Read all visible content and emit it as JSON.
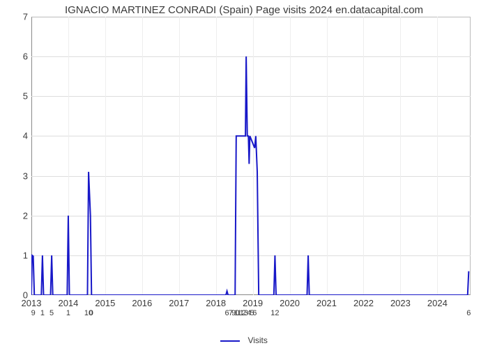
{
  "chart": {
    "type": "line",
    "title": "IGNACIO MARTINEZ CONRADI (Spain) Page visits 2024 en.datacapital.com",
    "title_fontsize": 15,
    "title_color": "#3a3a3a",
    "background_color": "#ffffff",
    "plot_border_color_main": "#888888",
    "plot_border_color_light": "#bbbbbb",
    "grid_color_h": "#dddddd",
    "grid_color_v": "#eeeeee",
    "line_color": "#1818c8",
    "line_width": 2,
    "xlim": [
      2013,
      2024.9
    ],
    "ylim": [
      0,
      7
    ],
    "ytick_step": 1,
    "yticks": [
      0,
      1,
      2,
      3,
      4,
      5,
      6,
      7
    ],
    "xticks": [
      2013,
      2014,
      2015,
      2016,
      2017,
      2018,
      2019,
      2020,
      2021,
      2022,
      2023,
      2024
    ],
    "tick_fontsize": 13,
    "legend_label": "Visits",
    "legend_fontsize": 12,
    "secondary_ticks": [
      {
        "x": 2013.05,
        "label": "9"
      },
      {
        "x": 2013.3,
        "label": "1"
      },
      {
        "x": 2013.55,
        "label": "5"
      },
      {
        "x": 2014.0,
        "label": "1"
      },
      {
        "x": 2014.55,
        "label": "10"
      },
      {
        "x": 2014.62,
        "label": "0"
      },
      {
        "x": 2018.3,
        "label": "6"
      },
      {
        "x": 2018.4,
        "label": "7"
      },
      {
        "x": 2018.48,
        "label": "9"
      },
      {
        "x": 2018.55,
        "label": "1"
      },
      {
        "x": 2018.58,
        "label": "0"
      },
      {
        "x": 2018.64,
        "label": "1"
      },
      {
        "x": 2018.7,
        "label": "1"
      },
      {
        "x": 2018.76,
        "label": "2"
      },
      {
        "x": 2018.82,
        "label": "3"
      },
      {
        "x": 2018.9,
        "label": "4"
      },
      {
        "x": 2018.98,
        "label": "5"
      },
      {
        "x": 2019.05,
        "label": "6"
      },
      {
        "x": 2019.6,
        "label": "12"
      },
      {
        "x": 2024.85,
        "label": "6"
      }
    ],
    "series": {
      "x": [
        2013.0,
        2013.02,
        2013.05,
        2013.08,
        2013.27,
        2013.3,
        2013.33,
        2013.52,
        2013.55,
        2013.58,
        2013.97,
        2014.0,
        2014.03,
        2014.52,
        2014.55,
        2014.6,
        2014.63,
        2014.66,
        2018.27,
        2018.3,
        2018.33,
        2018.52,
        2018.55,
        2018.8,
        2018.82,
        2018.85,
        2018.88,
        2018.9,
        2018.92,
        2019.05,
        2019.08,
        2019.12,
        2019.16,
        2019.2,
        2019.57,
        2019.6,
        2019.63,
        2020.47,
        2020.5,
        2020.53,
        2024.82,
        2024.85
      ],
      "y": [
        0,
        1,
        0.98,
        0,
        0,
        1,
        0,
        0,
        1,
        0,
        0,
        2,
        0,
        0,
        3.1,
        2.0,
        0,
        0,
        0,
        0.1,
        0,
        0,
        4,
        4,
        6,
        4,
        4,
        3.3,
        4,
        3.7,
        4,
        3.1,
        0,
        0,
        0,
        1,
        0,
        0,
        1,
        0,
        0,
        0.6
      ]
    }
  }
}
